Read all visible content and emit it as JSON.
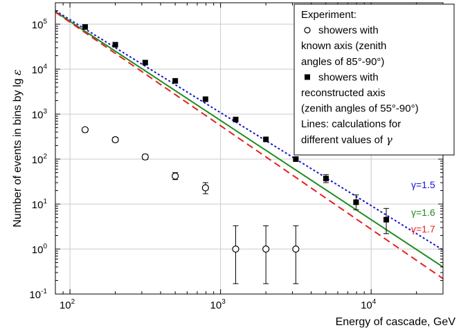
{
  "chart_data": {
    "type": "scatter",
    "xlabel": "Energy of cascade, GeV",
    "ylabel": "Number of events in bins by lg",
    "ylabel_symbol": "ε",
    "x_scale": "log",
    "y_scale": "log",
    "xlim": [
      80,
      30000
    ],
    "ylim": [
      0.1,
      300000
    ],
    "grid": true,
    "x_ticks": [
      {
        "value": 100,
        "base": "10",
        "exp": "2"
      },
      {
        "value": 1000,
        "base": "10",
        "exp": "3"
      },
      {
        "value": 10000,
        "base": "10",
        "exp": "4"
      }
    ],
    "y_ticks": [
      {
        "value": 0.1,
        "base": "10",
        "exp": "-1"
      },
      {
        "value": 1,
        "base": "10",
        "exp": "0"
      },
      {
        "value": 10,
        "base": "10",
        "exp": "1"
      },
      {
        "value": 100,
        "base": "10",
        "exp": "2"
      },
      {
        "value": 1000,
        "base": "10",
        "exp": "3"
      },
      {
        "value": 10000,
        "base": "10",
        "exp": "4"
      },
      {
        "value": 100000,
        "base": "10",
        "exp": "5"
      }
    ],
    "legend": {
      "position": "top-right",
      "lines": [
        {
          "text": "Experiment:",
          "marker": "none"
        },
        {
          "text": "showers with",
          "marker": "open-circle"
        },
        {
          "text": "known axis (zenith",
          "marker": "none"
        },
        {
          "text": "angles of 85°-90°)",
          "marker": "none"
        },
        {
          "text": "showers with",
          "marker": "filled-square"
        },
        {
          "text": "reconstructed axis",
          "marker": "none"
        },
        {
          "text": "(zenith angles of 55°-90°)",
          "marker": "none"
        },
        {
          "text": "Lines: calculations for",
          "marker": "none"
        },
        {
          "text": "different values of",
          "marker": "none",
          "symbol": "γ"
        }
      ]
    },
    "series": [
      {
        "name": "showers with known axis (zenith angles of 85°-90°)",
        "marker": "open-circle",
        "points": [
          {
            "x": 126,
            "y": 450,
            "ylo": 400,
            "yhi": 500
          },
          {
            "x": 200,
            "y": 270,
            "ylo": 240,
            "yhi": 305
          },
          {
            "x": 316,
            "y": 112,
            "ylo": 98,
            "yhi": 128
          },
          {
            "x": 500,
            "y": 42,
            "ylo": 35,
            "yhi": 50
          },
          {
            "x": 794,
            "y": 23,
            "ylo": 17,
            "yhi": 30
          },
          {
            "x": 1260,
            "y": 1,
            "ylo": 0.17,
            "yhi": 3.3
          },
          {
            "x": 2000,
            "y": 1,
            "ylo": 0.17,
            "yhi": 3.3
          },
          {
            "x": 3160,
            "y": 1,
            "ylo": 0.17,
            "yhi": 3.3
          }
        ]
      },
      {
        "name": "showers with reconstructed axis (zenith angles of 55°-90°)",
        "marker": "filled-square",
        "points": [
          {
            "x": 126,
            "y": 87000
          },
          {
            "x": 200,
            "y": 35000
          },
          {
            "x": 316,
            "y": 14000
          },
          {
            "x": 500,
            "y": 5500
          },
          {
            "x": 794,
            "y": 2150
          },
          {
            "x": 1260,
            "y": 760
          },
          {
            "x": 2000,
            "y": 275
          },
          {
            "x": 3160,
            "y": 100
          },
          {
            "x": 5010,
            "y": 37,
            "ylo": 30,
            "yhi": 45
          },
          {
            "x": 7940,
            "y": 11,
            "ylo": 7.5,
            "yhi": 16
          },
          {
            "x": 12600,
            "y": 4.5,
            "ylo": 2.2,
            "yhi": 8
          }
        ]
      }
    ],
    "curves": [
      {
        "label": "γ=1.5",
        "color": "#1414c8",
        "dash": "dot",
        "x": [
          80,
          30000
        ],
        "y": [
          200000,
          0.95
        ]
      },
      {
        "label": "γ=1.6",
        "color": "#1e8c1e",
        "dash": "solid",
        "x": [
          80,
          30000
        ],
        "y": [
          190000,
          0.4
        ]
      },
      {
        "label": "γ=1.7",
        "color": "#e61e1e",
        "dash": "dash",
        "x": [
          80,
          30000
        ],
        "y": [
          185000,
          0.22
        ]
      }
    ]
  }
}
